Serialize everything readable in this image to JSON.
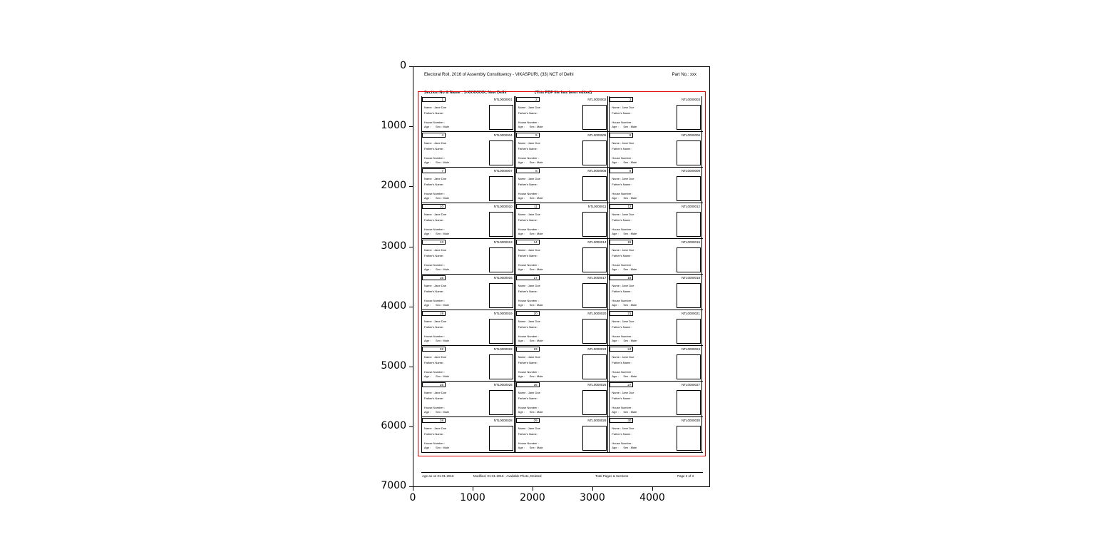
{
  "document": {
    "header_title": "Electoral Roll, 2016 of Assembly Constituency - VIKASPURI, (33) NCT of Delhi",
    "part_no": "Part No.: xxx",
    "section": "Section No & Name : 1-XXXXXXX, New Delhi",
    "edited_note": "(This PDF file has been edited)",
    "labels": {
      "name": "Name :",
      "relation": "Father's Name :",
      "house": "House Number :",
      "age": "Age :",
      "sex": "Sex : Male"
    },
    "voter_name": "Jane Doe",
    "cards": [
      {
        "sn": "1",
        "id": "NTL0000001"
      },
      {
        "sn": "2",
        "id": "NTL0000002"
      },
      {
        "sn": "3",
        "id": "NTL0000003"
      },
      {
        "sn": "4",
        "id": "NTL0000004"
      },
      {
        "sn": "5",
        "id": "NTL0000005"
      },
      {
        "sn": "6",
        "id": "NTL0000006"
      },
      {
        "sn": "7",
        "id": "NTL0000007"
      },
      {
        "sn": "8",
        "id": "NTL0000008"
      },
      {
        "sn": "9",
        "id": "NTL0000009"
      },
      {
        "sn": "10",
        "id": "NTL0000010"
      },
      {
        "sn": "11",
        "id": "NTL0000011"
      },
      {
        "sn": "12",
        "id": "NTL0000012"
      },
      {
        "sn": "13",
        "id": "NTL0000013"
      },
      {
        "sn": "14",
        "id": "NTL0000014"
      },
      {
        "sn": "15",
        "id": "NTL0000015"
      },
      {
        "sn": "16",
        "id": "NTL0000016"
      },
      {
        "sn": "17",
        "id": "NTL0000017"
      },
      {
        "sn": "18",
        "id": "NTL0000018"
      },
      {
        "sn": "19",
        "id": "NTL0000019"
      },
      {
        "sn": "20",
        "id": "NTL0000020"
      },
      {
        "sn": "21",
        "id": "NTL0000021"
      },
      {
        "sn": "22",
        "id": "NTL0000022"
      },
      {
        "sn": "23",
        "id": "NTL0000023"
      },
      {
        "sn": "24",
        "id": "NTL0000024"
      },
      {
        "sn": "25",
        "id": "NTL0000025"
      },
      {
        "sn": "26",
        "id": "NTL0000026"
      },
      {
        "sn": "27",
        "id": "NTL0000027"
      },
      {
        "sn": "28",
        "id": "NTL0000028"
      },
      {
        "sn": "29",
        "id": "NTL0000029"
      },
      {
        "sn": "30",
        "id": "NTL0000030"
      }
    ],
    "footer": [
      "Age as on 01-01-2016",
      "Modified, 01-01-2016 - Available Photo, Deleted",
      "Total Pages & Sections",
      "Page 2 of 3"
    ]
  },
  "axes": {
    "x_ticks": [
      "0",
      "1000",
      "2000",
      "3000",
      "4000"
    ],
    "y_ticks": [
      "0",
      "1000",
      "2000",
      "3000",
      "4000",
      "5000",
      "6000",
      "7000"
    ],
    "bbox_color": "#e00000"
  }
}
